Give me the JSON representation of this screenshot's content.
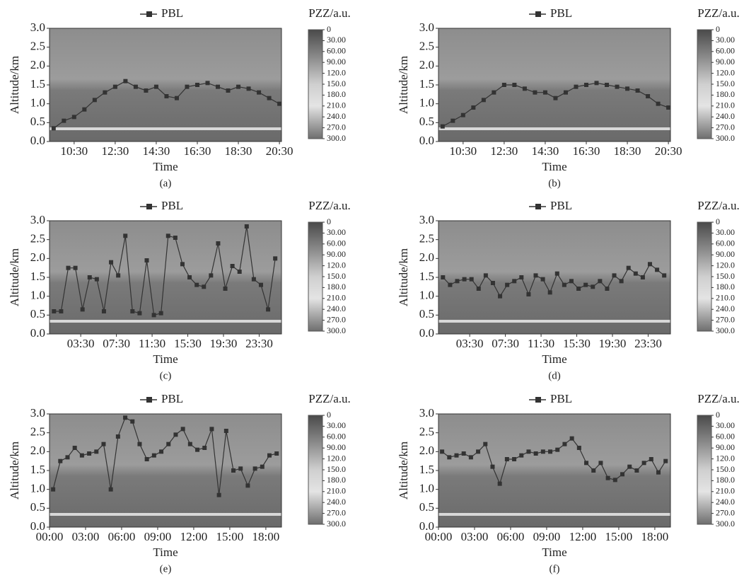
{
  "chart_data": [
    {
      "type": "line",
      "caption": "(a)",
      "xlabel": "Time",
      "ylabel": "Altitude/km",
      "x": [
        9.5,
        10,
        10.5,
        11,
        11.5,
        12,
        12.5,
        13,
        13.5,
        14,
        14.5,
        15,
        15.5,
        16,
        16.5,
        17,
        17.5,
        18,
        18.5,
        19,
        19.5,
        20,
        20.5
      ],
      "series": [
        {
          "name": "PBL",
          "color": "#333333",
          "values": [
            0.35,
            0.55,
            0.65,
            0.85,
            1.1,
            1.3,
            1.45,
            1.6,
            1.45,
            1.35,
            1.45,
            1.2,
            1.15,
            1.45,
            1.5,
            1.55,
            1.45,
            1.35,
            1.45,
            1.4,
            1.3,
            1.15,
            1.0
          ]
        }
      ],
      "xlim": [
        9.3,
        20.6
      ],
      "xticks": [
        {
          "value": 10.5,
          "label": "10:30"
        },
        {
          "value": 12.5,
          "label": "12:30"
        },
        {
          "value": 14.5,
          "label": "14:30"
        },
        {
          "value": 16.5,
          "label": "16:30"
        },
        {
          "value": 18.5,
          "label": "18:30"
        },
        {
          "value": 20.5,
          "label": "20:30"
        }
      ],
      "ylim": [
        0,
        3
      ],
      "yticks": [
        {
          "value": 0,
          "label": "0.0"
        },
        0.5,
        {
          "value": 1,
          "label": "1.0"
        },
        1.5,
        {
          "value": 2,
          "label": "2.0"
        },
        2.5,
        {
          "value": 3,
          "label": "3.0"
        }
      ],
      "colorbar": {
        "label": "PZZ/a.u.",
        "lim": [
          0,
          300
        ],
        "ticks": [
          0,
          {
            "value": 30,
            "label": "30.00"
          },
          {
            "value": 60,
            "label": "60.00"
          },
          {
            "value": 90,
            "label": "90.00"
          },
          {
            "value": 120,
            "label": "120.0"
          },
          {
            "value": 150,
            "label": "150.0"
          },
          {
            "value": 180,
            "label": "180.0"
          },
          {
            "value": 210,
            "label": "210.0"
          },
          {
            "value": 240,
            "label": "240.0"
          },
          {
            "value": 270,
            "label": "270.0"
          },
          {
            "value": 300,
            "label": "300.0"
          }
        ]
      }
    },
    {
      "type": "line",
      "caption": "(b)",
      "xlabel": "Time",
      "ylabel": "Altitude/km",
      "x": [
        9.5,
        10,
        10.5,
        11,
        11.5,
        12,
        12.5,
        13,
        13.5,
        14,
        14.5,
        15,
        15.5,
        16,
        16.5,
        17,
        17.5,
        18,
        18.5,
        19,
        19.5,
        20,
        20.5
      ],
      "series": [
        {
          "name": "PBL",
          "color": "#333333",
          "values": [
            0.4,
            0.55,
            0.7,
            0.9,
            1.1,
            1.3,
            1.5,
            1.5,
            1.4,
            1.3,
            1.3,
            1.15,
            1.3,
            1.45,
            1.5,
            1.55,
            1.5,
            1.45,
            1.4,
            1.35,
            1.2,
            1.0,
            0.9
          ]
        }
      ],
      "xlim": [
        9.3,
        20.6
      ],
      "xticks": [
        {
          "value": 10.5,
          "label": "10:30"
        },
        {
          "value": 12.5,
          "label": "12:30"
        },
        {
          "value": 14.5,
          "label": "14:30"
        },
        {
          "value": 16.5,
          "label": "16:30"
        },
        {
          "value": 18.5,
          "label": "18:30"
        },
        {
          "value": 20.5,
          "label": "20:30"
        }
      ],
      "ylim": [
        0,
        3
      ],
      "yticks": [
        {
          "value": 0,
          "label": "0.0"
        },
        0.5,
        {
          "value": 1,
          "label": "1.0"
        },
        1.5,
        {
          "value": 2,
          "label": "2.0"
        },
        2.5,
        {
          "value": 3,
          "label": "3.0"
        }
      ],
      "colorbar": {
        "label": "PZZ/a.u.",
        "lim": [
          0,
          300
        ],
        "ticks": [
          0,
          {
            "value": 30,
            "label": "30.00"
          },
          {
            "value": 60,
            "label": "60.00"
          },
          {
            "value": 90,
            "label": "90.00"
          },
          {
            "value": 120,
            "label": "120.0"
          },
          {
            "value": 150,
            "label": "150.0"
          },
          {
            "value": 180,
            "label": "180.0"
          },
          {
            "value": 210,
            "label": "210.0"
          },
          {
            "value": 240,
            "label": "240.0"
          },
          {
            "value": 270,
            "label": "270.0"
          },
          {
            "value": 300,
            "label": "300.0"
          }
        ]
      }
    },
    {
      "type": "line",
      "caption": "(c)",
      "xlabel": "Time",
      "ylabel": "Altitude/km",
      "x": [
        0.5,
        1.3,
        2.1,
        2.9,
        3.7,
        4.5,
        5.3,
        6.1,
        6.9,
        7.7,
        8.5,
        9.3,
        10.1,
        10.9,
        11.7,
        12.5,
        13.3,
        14.1,
        14.9,
        15.7,
        16.5,
        17.3,
        18.1,
        18.9,
        19.7,
        20.5,
        21.3,
        22.1,
        22.9,
        23.7,
        24.5,
        25.3
      ],
      "series": [
        {
          "name": "PBL",
          "color": "#333333",
          "values": [
            0.6,
            0.6,
            1.75,
            1.75,
            0.65,
            1.5,
            1.45,
            0.6,
            1.9,
            1.55,
            2.6,
            0.6,
            0.55,
            1.95,
            0.5,
            0.55,
            2.6,
            2.55,
            1.85,
            1.5,
            1.3,
            1.25,
            1.55,
            2.4,
            1.2,
            1.8,
            1.65,
            2.85,
            1.45,
            1.3,
            0.65,
            2.0
          ]
        }
      ],
      "xlim": [
        0,
        26
      ],
      "xticks": [
        {
          "value": 3.5,
          "label": "03:30"
        },
        {
          "value": 7.5,
          "label": "07:30"
        },
        {
          "value": 11.5,
          "label": "11:30"
        },
        {
          "value": 15.5,
          "label": "15:30"
        },
        {
          "value": 19.5,
          "label": "19:30"
        },
        {
          "value": 23.5,
          "label": "23:30"
        }
      ],
      "ylim": [
        0,
        3
      ],
      "yticks": [
        {
          "value": 0,
          "label": "0.0"
        },
        0.5,
        {
          "value": 1,
          "label": "1.0"
        },
        1.5,
        {
          "value": 2,
          "label": "2.0"
        },
        2.5,
        {
          "value": 3,
          "label": "3.0"
        }
      ],
      "colorbar": {
        "label": "PZZ/a.u.",
        "lim": [
          0,
          300
        ],
        "ticks": [
          0,
          {
            "value": 30,
            "label": "30.00"
          },
          {
            "value": 60,
            "label": "60.00"
          },
          {
            "value": 90,
            "label": "90.00"
          },
          {
            "value": 120,
            "label": "120.0"
          },
          {
            "value": 150,
            "label": "150.0"
          },
          {
            "value": 180,
            "label": "180.0"
          },
          {
            "value": 210,
            "label": "210.0"
          },
          {
            "value": 240,
            "label": "240.0"
          },
          {
            "value": 270,
            "label": "270.0"
          },
          {
            "value": 300,
            "label": "300.0"
          }
        ]
      }
    },
    {
      "type": "line",
      "caption": "(d)",
      "xlabel": "Time",
      "ylabel": "Altitude/km",
      "x": [
        0.5,
        1.3,
        2.1,
        2.9,
        3.7,
        4.5,
        5.3,
        6.1,
        6.9,
        7.7,
        8.5,
        9.3,
        10.1,
        10.9,
        11.7,
        12.5,
        13.3,
        14.1,
        14.9,
        15.7,
        16.5,
        17.3,
        18.1,
        18.9,
        19.7,
        20.5,
        21.3,
        22.1,
        22.9,
        23.7,
        24.5,
        25.3
      ],
      "series": [
        {
          "name": "PBL",
          "color": "#333333",
          "values": [
            1.5,
            1.3,
            1.4,
            1.45,
            1.45,
            1.2,
            1.55,
            1.35,
            1.0,
            1.3,
            1.4,
            1.5,
            1.05,
            1.55,
            1.45,
            1.1,
            1.6,
            1.3,
            1.4,
            1.2,
            1.3,
            1.25,
            1.4,
            1.2,
            1.55,
            1.4,
            1.75,
            1.6,
            1.5,
            1.85,
            1.7,
            1.55
          ]
        }
      ],
      "xlim": [
        0,
        26
      ],
      "xticks": [
        {
          "value": 3.5,
          "label": "03:30"
        },
        {
          "value": 7.5,
          "label": "07:30"
        },
        {
          "value": 11.5,
          "label": "11:30"
        },
        {
          "value": 15.5,
          "label": "15:30"
        },
        {
          "value": 19.5,
          "label": "19:30"
        },
        {
          "value": 23.5,
          "label": "23:30"
        }
      ],
      "ylim": [
        0,
        3
      ],
      "yticks": [
        {
          "value": 0,
          "label": "0.0"
        },
        0.5,
        {
          "value": 1,
          "label": "1.0"
        },
        1.5,
        {
          "value": 2,
          "label": "2.0"
        },
        2.5,
        {
          "value": 3,
          "label": "3.0"
        }
      ],
      "colorbar": {
        "label": "PZZ/a.u.",
        "lim": [
          0,
          300
        ],
        "ticks": [
          0,
          {
            "value": 30,
            "label": "30.00"
          },
          {
            "value": 60,
            "label": "60.00"
          },
          {
            "value": 90,
            "label": "90.00"
          },
          {
            "value": 120,
            "label": "120.0"
          },
          {
            "value": 150,
            "label": "150.0"
          },
          {
            "value": 180,
            "label": "180.0"
          },
          {
            "value": 210,
            "label": "210.0"
          },
          {
            "value": 240,
            "label": "240.0"
          },
          {
            "value": 270,
            "label": "270.0"
          },
          {
            "value": 300,
            "label": "300.0"
          }
        ]
      }
    },
    {
      "type": "line",
      "caption": "(e)",
      "xlabel": "Time",
      "ylabel": "Altitude/km",
      "x": [
        0.3,
        0.9,
        1.5,
        2.1,
        2.7,
        3.3,
        3.9,
        4.5,
        5.1,
        5.7,
        6.3,
        6.9,
        7.5,
        8.1,
        8.7,
        9.3,
        9.9,
        10.5,
        11.1,
        11.7,
        12.3,
        12.9,
        13.5,
        14.1,
        14.7,
        15.3,
        15.9,
        16.5,
        17.1,
        17.7,
        18.3,
        18.9
      ],
      "series": [
        {
          "name": "PBL",
          "color": "#333333",
          "values": [
            1.0,
            1.75,
            1.85,
            2.1,
            1.9,
            1.95,
            2.0,
            2.2,
            1.0,
            2.4,
            2.9,
            2.8,
            2.2,
            1.8,
            1.9,
            2.0,
            2.2,
            2.45,
            2.6,
            2.2,
            2.05,
            2.1,
            2.6,
            0.85,
            2.55,
            1.5,
            1.55,
            1.1,
            1.55,
            1.6,
            1.9,
            1.95
          ]
        }
      ],
      "xlim": [
        0,
        19.3
      ],
      "xticks": [
        {
          "value": 0,
          "label": "00:00"
        },
        {
          "value": 3,
          "label": "03:00"
        },
        {
          "value": 6,
          "label": "06:00"
        },
        {
          "value": 9,
          "label": "09:00"
        },
        {
          "value": 12,
          "label": "12:00"
        },
        {
          "value": 15,
          "label": "15:00"
        },
        {
          "value": 18,
          "label": "18:00"
        }
      ],
      "ylim": [
        0,
        3
      ],
      "yticks": [
        {
          "value": 0,
          "label": "0.0"
        },
        0.5,
        {
          "value": 1,
          "label": "1.0"
        },
        1.5,
        {
          "value": 2,
          "label": "2.0"
        },
        2.5,
        {
          "value": 3,
          "label": "3.0"
        }
      ],
      "colorbar": {
        "label": "PZZ/a.u.",
        "lim": [
          0,
          300
        ],
        "ticks": [
          0,
          {
            "value": 30,
            "label": "30.00"
          },
          {
            "value": 60,
            "label": "60.00"
          },
          {
            "value": 90,
            "label": "90.00"
          },
          {
            "value": 120,
            "label": "120.0"
          },
          {
            "value": 150,
            "label": "150.0"
          },
          {
            "value": 180,
            "label": "180.0"
          },
          {
            "value": 210,
            "label": "210.0"
          },
          {
            "value": 240,
            "label": "240.0"
          },
          {
            "value": 270,
            "label": "270.0"
          },
          {
            "value": 300,
            "label": "300.0"
          }
        ]
      }
    },
    {
      "type": "line",
      "caption": "(f)",
      "xlabel": "Time",
      "ylabel": "Altitude/km",
      "x": [
        0.3,
        0.9,
        1.5,
        2.1,
        2.7,
        3.3,
        3.9,
        4.5,
        5.1,
        5.7,
        6.3,
        6.9,
        7.5,
        8.1,
        8.7,
        9.3,
        9.9,
        10.5,
        11.1,
        11.7,
        12.3,
        12.9,
        13.5,
        14.1,
        14.7,
        15.3,
        15.9,
        16.5,
        17.1,
        17.7,
        18.3,
        18.9
      ],
      "series": [
        {
          "name": "PBL",
          "color": "#333333",
          "values": [
            2.0,
            1.85,
            1.9,
            1.95,
            1.85,
            2.0,
            2.2,
            1.6,
            1.15,
            1.8,
            1.8,
            1.9,
            2.0,
            1.95,
            2.0,
            2.0,
            2.05,
            2.2,
            2.35,
            2.1,
            1.7,
            1.5,
            1.7,
            1.3,
            1.25,
            1.4,
            1.6,
            1.5,
            1.7,
            1.8,
            1.45,
            1.75
          ]
        }
      ],
      "xlim": [
        0,
        19.3
      ],
      "xticks": [
        {
          "value": 0,
          "label": "00:00"
        },
        {
          "value": 3,
          "label": "03:00"
        },
        {
          "value": 6,
          "label": "06:00"
        },
        {
          "value": 9,
          "label": "09:00"
        },
        {
          "value": 12,
          "label": "12:00"
        },
        {
          "value": 15,
          "label": "15:00"
        },
        {
          "value": 18,
          "label": "18:00"
        }
      ],
      "ylim": [
        0,
        3
      ],
      "yticks": [
        {
          "value": 0,
          "label": "0.0"
        },
        0.5,
        {
          "value": 1,
          "label": "1.0"
        },
        1.5,
        {
          "value": 2,
          "label": "2.0"
        },
        2.5,
        {
          "value": 3,
          "label": "3.0"
        }
      ],
      "colorbar": {
        "label": "PZZ/a.u.",
        "lim": [
          0,
          300
        ],
        "ticks": [
          0,
          {
            "value": 30,
            "label": "30.00"
          },
          {
            "value": 60,
            "label": "60.00"
          },
          {
            "value": 90,
            "label": "90.00"
          },
          {
            "value": 120,
            "label": "120.0"
          },
          {
            "value": 150,
            "label": "150.0"
          },
          {
            "value": 180,
            "label": "180.0"
          },
          {
            "value": 210,
            "label": "210.0"
          },
          {
            "value": 240,
            "label": "240.0"
          },
          {
            "value": 270,
            "label": "270.0"
          },
          {
            "value": 300,
            "label": "300.0"
          }
        ]
      }
    }
  ]
}
